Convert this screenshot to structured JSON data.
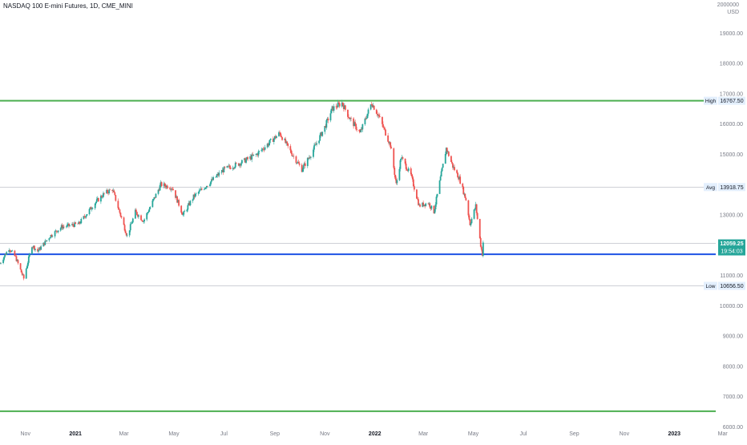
{
  "header": {
    "title": "NASDAQ 100 E-mini Futures, 1D, CME_MINI",
    "currency_top": "2000000",
    "currency_unit": "USD"
  },
  "colors": {
    "up": "#26a69a",
    "down": "#ef5350",
    "green_line": "#4caf50",
    "blue_line": "#1e53e5",
    "ref_line": "#b2b5be",
    "axis_text": "#787b86",
    "last_price_bg": "#26a69a",
    "label_bg": "#e3effd"
  },
  "chart_data": {
    "type": "candlestick",
    "ylim": [
      6000,
      20000
    ],
    "x_start": "2020-10-01",
    "x_end": "2023-03-15",
    "y_ticks": [
      {
        "value": 19000,
        "label": "19000.00"
      },
      {
        "value": 18000,
        "label": "18000.00"
      },
      {
        "value": 17000,
        "label": "17000.00"
      },
      {
        "value": 16000,
        "label": "16000.00"
      },
      {
        "value": 15000,
        "label": "15000.00"
      },
      {
        "value": 13000,
        "label": "13000.00"
      },
      {
        "value": 11000,
        "label": "11000.00"
      },
      {
        "value": 10000,
        "label": "10000.00"
      },
      {
        "value": 9000,
        "label": "9000.00"
      },
      {
        "value": 8000,
        "label": "8000.00"
      },
      {
        "value": 7000,
        "label": "7000.00"
      },
      {
        "value": 6000,
        "label": "6000.00"
      }
    ],
    "x_ticks": [
      {
        "date": "2020-11-01",
        "label": "Nov",
        "bold": false
      },
      {
        "date": "2021-01-01",
        "label": "2021",
        "bold": true
      },
      {
        "date": "2021-03-01",
        "label": "Mar",
        "bold": false
      },
      {
        "date": "2021-05-01",
        "label": "May",
        "bold": false
      },
      {
        "date": "2021-07-01",
        "label": "Jul",
        "bold": false
      },
      {
        "date": "2021-09-01",
        "label": "Sep",
        "bold": false
      },
      {
        "date": "2021-11-01",
        "label": "Nov",
        "bold": false
      },
      {
        "date": "2022-01-01",
        "label": "2022",
        "bold": true
      },
      {
        "date": "2022-03-01",
        "label": "Mar",
        "bold": false
      },
      {
        "date": "2022-05-01",
        "label": "May",
        "bold": false
      },
      {
        "date": "2022-07-01",
        "label": "Jul",
        "bold": false
      },
      {
        "date": "2022-09-01",
        "label": "Sep",
        "bold": false
      },
      {
        "date": "2022-11-01",
        "label": "Nov",
        "bold": false
      },
      {
        "date": "2023-01-01",
        "label": "2023",
        "bold": true
      },
      {
        "date": "2023-03-01",
        "label": "Mar",
        "bold": false
      }
    ],
    "price_path": [
      [
        "2020-10-01",
        11400
      ],
      [
        "2020-10-12",
        11900
      ],
      [
        "2020-10-20",
        11600
      ],
      [
        "2020-10-30",
        10900
      ],
      [
        "2020-11-09",
        12000
      ],
      [
        "2020-11-16",
        11800
      ],
      [
        "2020-12-01",
        12300
      ],
      [
        "2020-12-15",
        12600
      ],
      [
        "2021-01-05",
        12700
      ],
      [
        "2021-01-25",
        13400
      ],
      [
        "2021-02-05",
        13700
      ],
      [
        "2021-02-15",
        13850
      ],
      [
        "2021-03-05",
        12300
      ],
      [
        "2021-03-15",
        13100
      ],
      [
        "2021-03-25",
        12800
      ],
      [
        "2021-04-15",
        14000
      ],
      [
        "2021-04-29",
        13900
      ],
      [
        "2021-05-12",
        13000
      ],
      [
        "2021-05-25",
        13600
      ],
      [
        "2021-06-15",
        14100
      ],
      [
        "2021-07-01",
        14500
      ],
      [
        "2021-07-20",
        14700
      ],
      [
        "2021-08-10",
        15000
      ],
      [
        "2021-09-07",
        15700
      ],
      [
        "2021-09-20",
        15100
      ],
      [
        "2021-10-04",
        14500
      ],
      [
        "2021-10-15",
        15000
      ],
      [
        "2021-11-01",
        15900
      ],
      [
        "2021-11-10",
        16500
      ],
      [
        "2021-11-22",
        16700
      ],
      [
        "2021-12-01",
        16200
      ],
      [
        "2021-12-14",
        15700
      ],
      [
        "2021-12-28",
        16700
      ],
      [
        "2022-01-05",
        16300
      ],
      [
        "2022-01-20",
        15300
      ],
      [
        "2022-01-27",
        14000
      ],
      [
        "2022-02-02",
        14900
      ],
      [
        "2022-02-14",
        14300
      ],
      [
        "2022-02-24",
        13300
      ],
      [
        "2022-03-07",
        13400
      ],
      [
        "2022-03-14",
        13100
      ],
      [
        "2022-03-29",
        15200
      ],
      [
        "2022-04-06",
        14600
      ],
      [
        "2022-04-14",
        14200
      ],
      [
        "2022-04-22",
        13500
      ],
      [
        "2022-04-27",
        12700
      ],
      [
        "2022-05-04",
        13300
      ],
      [
        "2022-05-10",
        12000
      ],
      [
        "2022-05-12",
        11700
      ],
      [
        "2022-05-13",
        12100
      ]
    ],
    "h_lines": [
      {
        "name": "green-top",
        "value": 16767.5,
        "color_key": "green_line",
        "width": 2
      },
      {
        "name": "green-bottom",
        "value": 6520,
        "color_key": "green_line",
        "width": 2
      },
      {
        "name": "blue-support",
        "value": 11700,
        "color_key": "blue_line",
        "width": 2
      },
      {
        "name": "avg-ref",
        "value": 13918.75,
        "color_key": "ref_line",
        "width": 0.6
      },
      {
        "name": "low-ref",
        "value": 10656.5,
        "color_key": "ref_line",
        "width": 0.6
      },
      {
        "name": "last-ref",
        "value": 12059.25,
        "color_key": "ref_line",
        "width": 0.6
      }
    ],
    "price_labels": [
      {
        "name": "high",
        "tag": "High",
        "value": 16767.5,
        "label": "16767.50"
      },
      {
        "name": "avg",
        "tag": "Avg",
        "value": 13918.75,
        "label": "13918.75"
      },
      {
        "name": "low",
        "tag": "Low",
        "value": 10656.5,
        "label": "10656.50"
      }
    ],
    "last_price": {
      "value": 12059.25,
      "label": "12059.25",
      "countdown": "19:54:03"
    }
  }
}
